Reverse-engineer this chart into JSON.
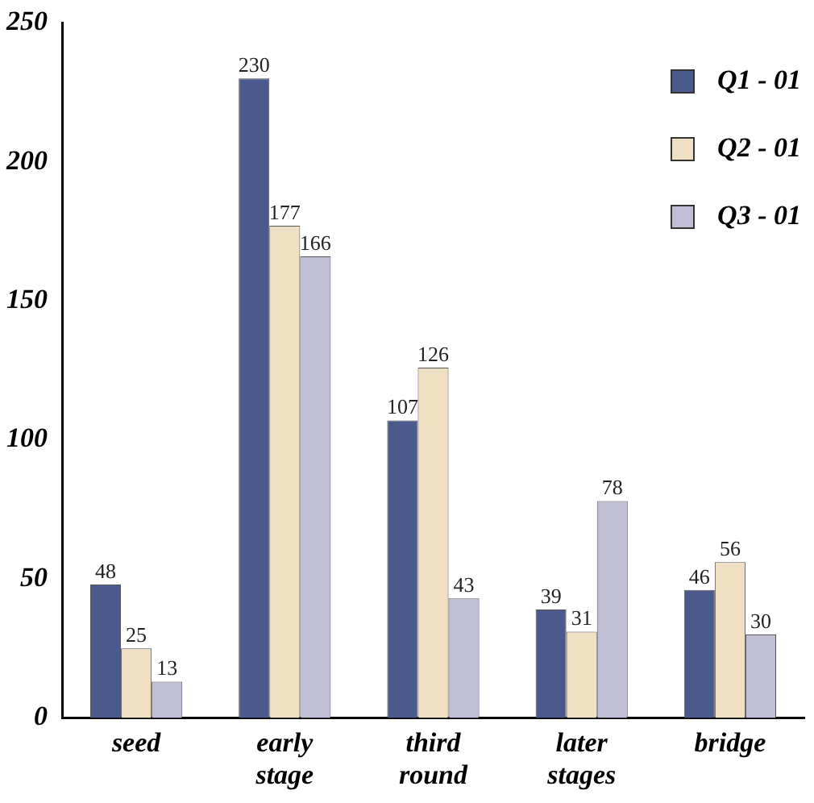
{
  "chart_data": {
    "type": "bar",
    "categories": [
      "seed",
      "early stage",
      "third round",
      "later stages",
      "bridge"
    ],
    "series": [
      {
        "name": "Q1 - 01",
        "color": "#4a5a8c",
        "values": [
          48,
          230,
          107,
          39,
          46
        ]
      },
      {
        "name": "Q2 - 01",
        "color": "#efe0c4",
        "values": [
          25,
          177,
          126,
          31,
          56
        ]
      },
      {
        "name": "Q3 - 01",
        "color": "#c0bed4",
        "values": [
          13,
          166,
          43,
          78,
          30
        ]
      }
    ],
    "ylim": [
      0,
      250
    ],
    "yticks": [
      0,
      50,
      100,
      150,
      200,
      250
    ],
    "grid": false,
    "legend": "top right",
    "data_labels": true
  }
}
